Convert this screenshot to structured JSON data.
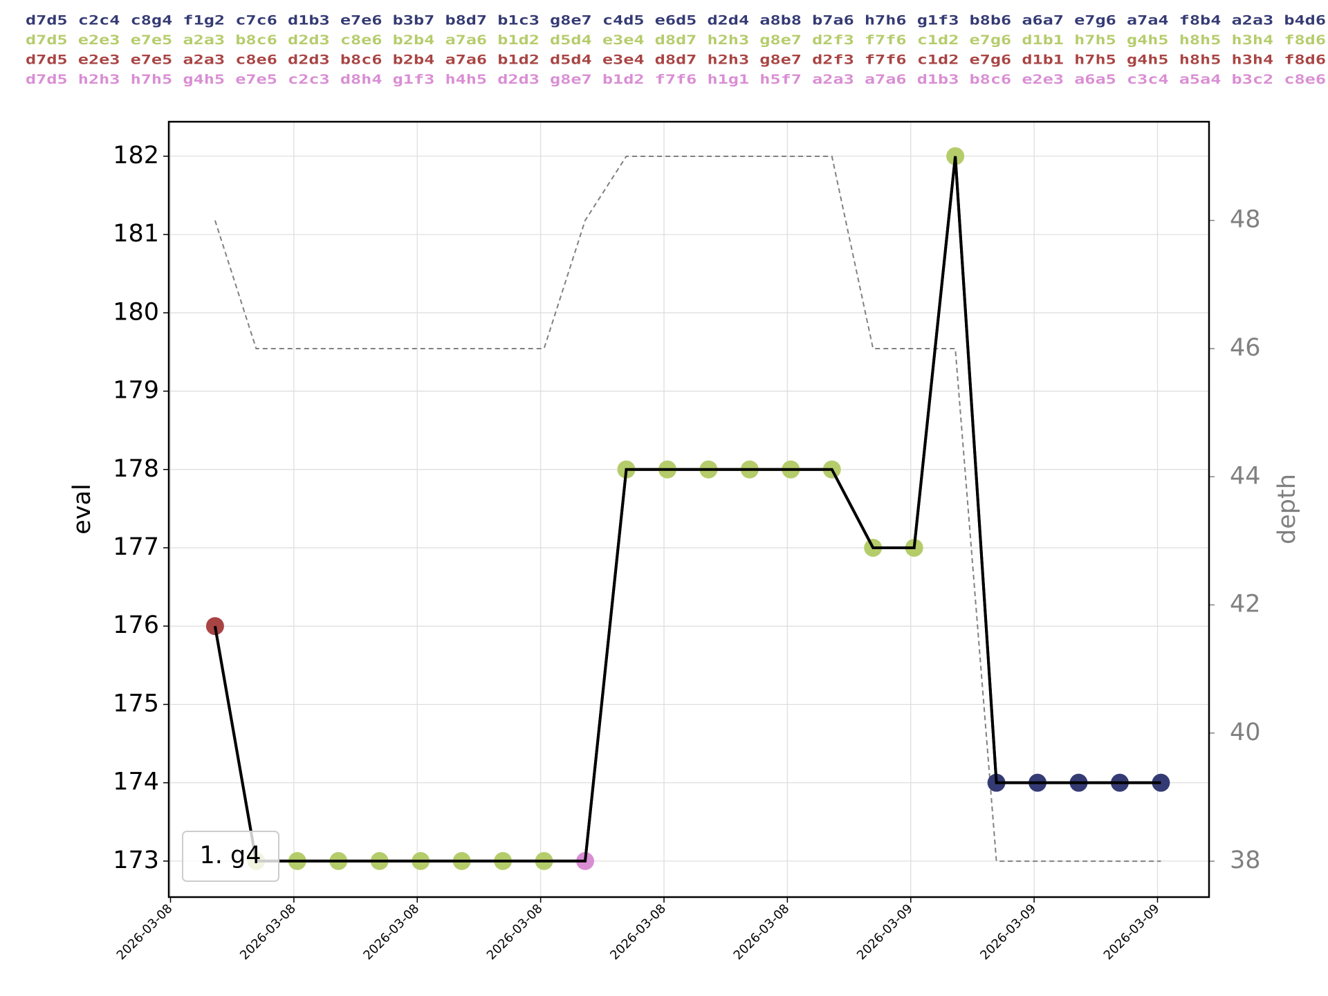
{
  "chart_data": {
    "type": "line",
    "header_lines": [
      {
        "text": "d7d5 c2c4 c8g4 f1g2 c7c6 d1b3 e7e6 b3b7 b8d7 b1c3 g8e7 c4d5 e6d5 d2d4 a8b8 b7a6 h7h6 g1f3 b8b6 a6a7 e7g6 a7a4 f8b4 a2a3 b4d6",
        "color": "#343a73"
      },
      {
        "text": "d7d5 e2e3 e7e5 a2a3 b8c6 d2d3 c8e6 b2b4 a7a6 b1d2 d5d4 e3e4 d8d7 h2h3 g8e7 d2f3 f7f6 c1d2 e7g6 d1b1 h7h5 g4h5 h8h5 h3h4 f8d6",
        "color": "#b5cc6b"
      },
      {
        "text": "d7d5 e2e3 e7e5 a2a3 c8e6 d2d3 b8c6 b2b4 a7a6 b1d2 d5d4 e3e4 d8d7 h2h3 g8e7 d2f3 f7f6 c1d2 e7g6 d1b1 h7h5 g4h5 h8h5 h3h4 f8d6",
        "color": "#a94444"
      },
      {
        "text": "d7d5 h2h3 h7h5 g4h5 e7e5 c2c3 d8h4 g1f3 h4h5 d2d3 g8e7 b1d2 f7f6 h1g1 h5f7 a2a3 a7a6 d1b3 b8c6 e2e3 a6a5 c3c4 a5a4 b3c2 c8e6",
        "color": "#d98ed4"
      }
    ],
    "annotation": "1. g4",
    "ylabel": "eval",
    "y2label": "depth",
    "x": [
      0,
      1,
      2,
      3,
      4,
      5,
      6,
      7,
      8,
      9,
      10,
      11,
      12,
      13,
      14,
      15,
      16,
      17,
      18,
      19,
      20,
      21,
      22,
      23
    ],
    "xlim": [
      -1.125,
      24.17
    ],
    "xticks": [
      {
        "value": -1.083,
        "label": "2026-03-08"
      },
      {
        "value": 1.917,
        "label": "2026-03-08"
      },
      {
        "value": 4.917,
        "label": "2026-03-08"
      },
      {
        "value": 7.917,
        "label": "2026-03-08"
      },
      {
        "value": 10.917,
        "label": "2026-03-08"
      },
      {
        "value": 13.917,
        "label": "2026-03-08"
      },
      {
        "value": 16.917,
        "label": "2026-03-09"
      },
      {
        "value": 19.917,
        "label": "2026-03-09"
      },
      {
        "value": 22.917,
        "label": "2026-03-09"
      }
    ],
    "ylim": [
      172.54,
      182.44
    ],
    "yticks": [
      173,
      174,
      175,
      176,
      177,
      178,
      179,
      180,
      181,
      182
    ],
    "y2lim": [
      37.44,
      49.54
    ],
    "y2ticks": [
      38,
      40,
      42,
      44,
      46,
      48
    ],
    "grid": true,
    "series": [
      {
        "color": "#000000",
        "values": [
          176,
          173,
          173,
          173,
          173,
          173,
          173,
          173,
          173,
          173,
          178,
          178,
          178,
          178,
          178,
          178,
          177,
          177,
          182,
          174,
          174,
          174,
          174,
          174
        ],
        "point_colors": [
          "#a94444",
          "#b5cc6b",
          "#b5cc6b",
          "#b5cc6b",
          "#b5cc6b",
          "#b5cc6b",
          "#b5cc6b",
          "#b5cc6b",
          "#b5cc6b",
          "#d98ed4",
          "#b5cc6b",
          "#b5cc6b",
          "#b5cc6b",
          "#b5cc6b",
          "#b5cc6b",
          "#b5cc6b",
          "#b5cc6b",
          "#b5cc6b",
          "#b5cc6b",
          "#343a73",
          "#343a73",
          "#343a73",
          "#343a73",
          "#343a73"
        ]
      },
      {
        "color": "#808080",
        "axis": "y2",
        "dashed": true,
        "values": [
          48,
          46,
          46,
          46,
          46,
          46,
          46,
          46,
          46,
          48,
          49,
          49,
          49,
          49,
          49,
          49,
          46,
          46,
          46,
          38,
          38,
          38,
          38,
          38
        ]
      }
    ]
  }
}
